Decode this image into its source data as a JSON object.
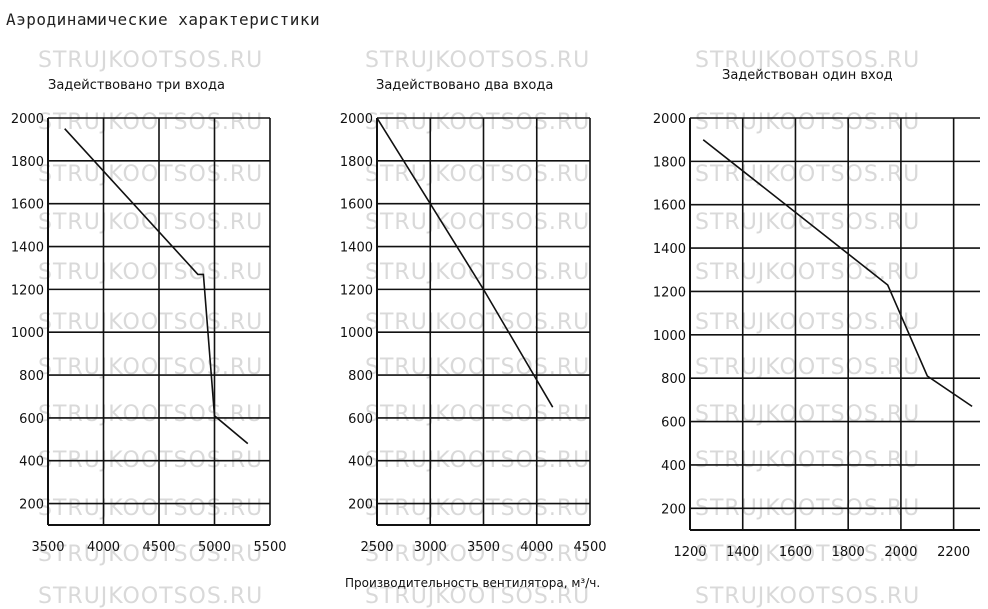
{
  "header": {
    "title": "Аэродинамические характеристики"
  },
  "watermark": {
    "text": "STRUJKOOTSOS.RU",
    "color": "#d9d9d9"
  },
  "axis_label": "Производительность вентилятора, м³/ч.",
  "chart_data": [
    {
      "type": "line",
      "title": "Задействовано три входа",
      "x": [
        3650,
        4850,
        4900,
        5000,
        5300
      ],
      "y": [
        1950,
        1270,
        1270,
        610,
        480
      ],
      "xlim": [
        3500,
        5500
      ],
      "ylim": [
        100,
        2000
      ],
      "xticks": [
        3500,
        4000,
        4500,
        5000,
        5500
      ],
      "yticks": [
        2000,
        1800,
        1600,
        1400,
        1200,
        1000,
        800,
        600,
        400,
        200
      ],
      "grid": true
    },
    {
      "type": "line",
      "title": "Задействовано два входа",
      "x": [
        2500,
        3500,
        4150
      ],
      "y": [
        2000,
        1200,
        650
      ],
      "xlim": [
        2500,
        4500
      ],
      "ylim": [
        100,
        2000
      ],
      "xticks": [
        2500,
        3000,
        3500,
        4000,
        4500
      ],
      "yticks": [
        2000,
        1800,
        1600,
        1400,
        1200,
        1000,
        800,
        600,
        400,
        200
      ],
      "grid": true
    },
    {
      "type": "line",
      "title": "Задействован один вход",
      "x": [
        1250,
        1950,
        2100,
        2270
      ],
      "y": [
        1900,
        1230,
        810,
        670
      ],
      "xlim": [
        1200,
        2300
      ],
      "ylim": [
        100,
        2000
      ],
      "xticks": [
        1200,
        1400,
        1600,
        1800,
        2000,
        2200
      ],
      "yticks": [
        2000,
        1800,
        1600,
        1400,
        1200,
        1000,
        800,
        600,
        400,
        200
      ],
      "grid": true
    }
  ]
}
